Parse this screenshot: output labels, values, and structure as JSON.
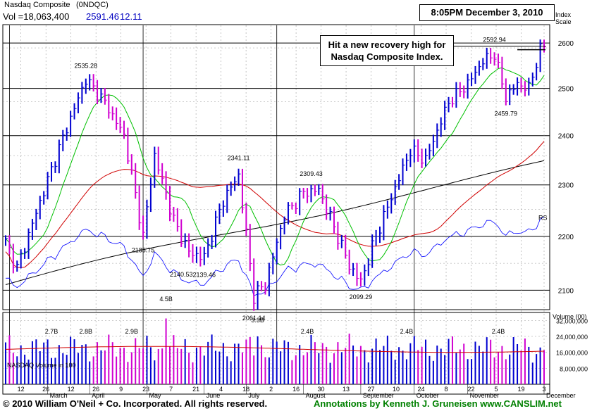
{
  "header": {
    "index_name": "Nasdaq Composite",
    "symbol": "(0NDQC)",
    "vol_label": "Vol =18,063,400",
    "close": "2591.46",
    "change": "12.11",
    "timestamp": "8:05PM December 3, 2010",
    "scale_label": "Index Scale"
  },
  "annotation": {
    "line1": "Hit a new recovery high for",
    "line2": "Nasdaq Composite Index."
  },
  "volume_panel": {
    "title": "Volume (00)",
    "label": "NASDAQ Volume in 100",
    "ticks": [
      "32,000,000",
      "24,000,000",
      "16,000,000",
      "8,000,000"
    ]
  },
  "footer": {
    "copyright": "© 2010 William O'Neil + Co. Incorporated. All rights reserved.",
    "annotations": "Annotations by Kenneth J. Gruneisen www.CANSLIM.net"
  },
  "colors": {
    "up": "#0000d0",
    "down": "#d000d0",
    "ma_short": "#00c000",
    "ma_long": "#d00000",
    "ma_200": "#000000",
    "rs": "#0000ff",
    "footer_left": "#000000",
    "footer_right": "#008000"
  },
  "chart_data": {
    "type": "line",
    "subtype": "ohlc-price-volume",
    "y_scale": "log",
    "ylim": [
      2065,
      2640
    ],
    "y_ticks": [
      2100,
      2200,
      2300,
      2400,
      2500,
      2600
    ],
    "x_tick_labels": [
      "12",
      "26",
      "12",
      "26",
      "9",
      "23",
      "7",
      "21",
      "4",
      "18",
      "2",
      "16",
      "30",
      "13",
      "27",
      "10",
      "24",
      "8",
      "22",
      "5",
      "19",
      "3"
    ],
    "month_labels": [
      "March",
      "April",
      "May",
      "June",
      "July",
      "August",
      "September",
      "October",
      "November",
      "December"
    ],
    "price_labels": [
      {
        "value": "2535.28",
        "date_index": 21
      },
      {
        "value": "2185.75",
        "date_index": 36
      },
      {
        "value": "2140.53",
        "date_index": 46
      },
      {
        "value": "2139.46",
        "date_index": 52
      },
      {
        "value": "2341.11",
        "date_index": 61
      },
      {
        "value": "2061.14",
        "date_index": 65
      },
      {
        "value": "2309.43",
        "date_index": 80
      },
      {
        "value": "2099.29",
        "date_index": 93
      },
      {
        "value": "2592.94",
        "date_index": 128
      },
      {
        "value": "2459.79",
        "date_index": 131
      }
    ],
    "volume_labels": [
      {
        "value": "4.5B",
        "date_index": 42
      },
      {
        "value": "2.7B",
        "date_index": 12
      },
      {
        "value": "2.8B",
        "date_index": 21
      },
      {
        "value": "2.9B",
        "date_index": 33
      },
      {
        "value": "3.3B",
        "date_index": 66
      },
      {
        "value": "2.4B",
        "date_index": 79
      },
      {
        "value": "2.4B",
        "date_index": 105
      },
      {
        "value": "2.4B",
        "date_index": 129
      }
    ],
    "rs_label": "RS",
    "key_points": [
      {
        "i": 0,
        "close": 2190
      },
      {
        "i": 3,
        "close": 2140
      },
      {
        "i": 8,
        "close": 2245
      },
      {
        "i": 15,
        "close": 2395
      },
      {
        "i": 21,
        "close": 2520
      },
      {
        "i": 26,
        "close": 2470
      },
      {
        "i": 31,
        "close": 2400
      },
      {
        "i": 36,
        "close": 2200
      },
      {
        "i": 39,
        "close": 2360
      },
      {
        "i": 44,
        "close": 2230
      },
      {
        "i": 48,
        "close": 2170
      },
      {
        "i": 52,
        "close": 2160
      },
      {
        "i": 57,
        "close": 2270
      },
      {
        "i": 61,
        "close": 2320
      },
      {
        "i": 65,
        "close": 2090
      },
      {
        "i": 68,
        "close": 2110
      },
      {
        "i": 73,
        "close": 2240
      },
      {
        "i": 78,
        "close": 2285
      },
      {
        "i": 82,
        "close": 2290
      },
      {
        "i": 87,
        "close": 2200
      },
      {
        "i": 90,
        "close": 2145
      },
      {
        "i": 93,
        "close": 2115
      },
      {
        "i": 97,
        "close": 2200
      },
      {
        "i": 101,
        "close": 2275
      },
      {
        "i": 106,
        "close": 2370
      },
      {
        "i": 110,
        "close": 2350
      },
      {
        "i": 116,
        "close": 2470
      },
      {
        "i": 121,
        "close": 2510
      },
      {
        "i": 125,
        "close": 2560
      },
      {
        "i": 128,
        "close": 2575
      },
      {
        "i": 131,
        "close": 2480
      },
      {
        "i": 134,
        "close": 2510
      },
      {
        "i": 137,
        "close": 2500
      },
      {
        "i": 140,
        "close": 2585
      },
      {
        "i": 141,
        "close": 2591.46
      }
    ],
    "n_days": 142,
    "grid": true,
    "legend": "none"
  }
}
